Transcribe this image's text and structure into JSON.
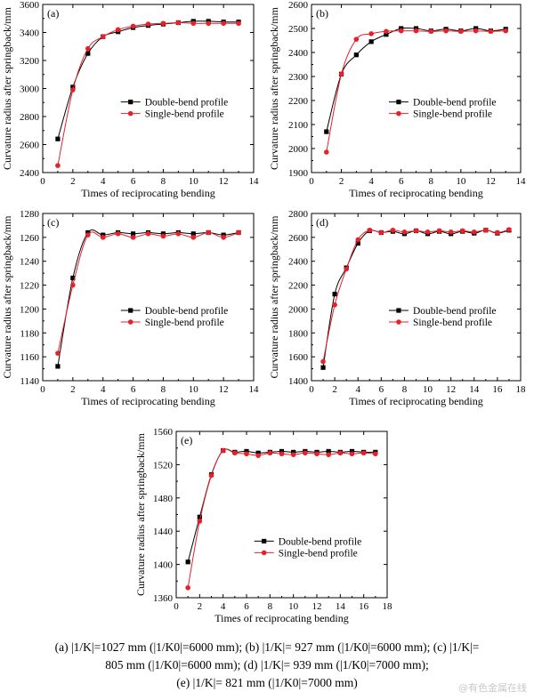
{
  "chart_data": [
    {
      "type": "line",
      "panel_label": "(a)",
      "xlabel": "Times of reciprocating bending",
      "ylabel": "Curvature radius after springback/mm",
      "xlim": [
        0,
        14
      ],
      "ylim": [
        2400,
        3600
      ],
      "xticks": [
        0,
        2,
        4,
        6,
        8,
        10,
        12,
        14
      ],
      "yticks": [
        2400,
        2600,
        2800,
        3000,
        3200,
        3400,
        3600
      ],
      "legend_position": "center-right",
      "series": [
        {
          "name": "Double-bend profile",
          "marker": "square",
          "color": "#000000",
          "x": [
            1,
            2,
            3,
            4,
            5,
            6,
            7,
            8,
            9,
            10,
            11,
            12,
            13
          ],
          "y": [
            2640,
            3010,
            3250,
            3370,
            3405,
            3435,
            3450,
            3460,
            3470,
            3480,
            3480,
            3475,
            3475
          ]
        },
        {
          "name": "Single-bend profile",
          "marker": "circle",
          "color": "#e8202a",
          "x": [
            1,
            2,
            3,
            4,
            5,
            6,
            7,
            8,
            9,
            10,
            11,
            12,
            13
          ],
          "y": [
            2450,
            2990,
            3285,
            3370,
            3420,
            3445,
            3460,
            3465,
            3470,
            3465,
            3465,
            3465,
            3465
          ]
        }
      ]
    },
    {
      "type": "line",
      "panel_label": "(b)",
      "xlabel": "Times of reciprocating bending",
      "ylabel": "Curvature radius after springback/mm",
      "xlim": [
        0,
        14
      ],
      "ylim": [
        1900,
        2600
      ],
      "xticks": [
        0,
        2,
        4,
        6,
        8,
        10,
        12,
        14
      ],
      "yticks": [
        1900,
        2000,
        2100,
        2200,
        2300,
        2400,
        2500,
        2600
      ],
      "legend_position": "center-right",
      "series": [
        {
          "name": "Double-bend profile",
          "marker": "square",
          "color": "#000000",
          "x": [
            1,
            2,
            3,
            4,
            5,
            6,
            7,
            8,
            9,
            10,
            11,
            12,
            13
          ],
          "y": [
            2070,
            2310,
            2390,
            2445,
            2475,
            2500,
            2500,
            2490,
            2497,
            2490,
            2500,
            2490,
            2497
          ]
        },
        {
          "name": "Single-bend profile",
          "marker": "circle",
          "color": "#e8202a",
          "x": [
            1,
            2,
            3,
            4,
            5,
            6,
            7,
            8,
            9,
            10,
            11,
            12,
            13
          ],
          "y": [
            1985,
            2310,
            2455,
            2478,
            2488,
            2490,
            2490,
            2488,
            2490,
            2488,
            2490,
            2488,
            2490
          ]
        }
      ]
    },
    {
      "type": "line",
      "panel_label": "(c)",
      "xlabel": "Times of reciprocating bending",
      "ylabel": "Curvature radius after springback/mm",
      "xlim": [
        0,
        14
      ],
      "ylim": [
        1140,
        1280
      ],
      "xticks": [
        0,
        2,
        4,
        6,
        8,
        10,
        12,
        14
      ],
      "yticks": [
        1140,
        1160,
        1180,
        1200,
        1220,
        1240,
        1260,
        1280
      ],
      "legend_position": "center-right",
      "series": [
        {
          "name": "Double-bend profile",
          "marker": "square",
          "color": "#000000",
          "x": [
            1,
            2,
            3,
            4,
            5,
            6,
            7,
            8,
            9,
            10,
            11,
            12,
            13
          ],
          "y": [
            1152,
            1226,
            1264,
            1262,
            1264,
            1263,
            1264,
            1263,
            1264,
            1263,
            1264,
            1262,
            1264
          ]
        },
        {
          "name": "Single-bend profile",
          "marker": "circle",
          "color": "#e8202a",
          "x": [
            1,
            2,
            3,
            4,
            5,
            6,
            7,
            8,
            9,
            10,
            11,
            12,
            13
          ],
          "y": [
            1163,
            1220,
            1262,
            1260,
            1263,
            1260,
            1263,
            1261,
            1263,
            1260,
            1264,
            1260,
            1264
          ]
        }
      ]
    },
    {
      "type": "line",
      "panel_label": "(d)",
      "xlabel": "Times of reciprocating bending",
      "ylabel": "Curvature radius after springback/mm",
      "xlim": [
        0,
        18
      ],
      "ylim": [
        1400,
        2800
      ],
      "xticks": [
        0,
        2,
        4,
        6,
        8,
        10,
        12,
        14,
        16,
        18
      ],
      "yticks": [
        1400,
        1600,
        1800,
        2000,
        2200,
        2400,
        2600,
        2800
      ],
      "legend_position": "center-right",
      "series": [
        {
          "name": "Double-bend profile",
          "marker": "square",
          "color": "#000000",
          "x": [
            1,
            2,
            3,
            4,
            5,
            6,
            7,
            8,
            9,
            10,
            11,
            12,
            13,
            14,
            15,
            16,
            17
          ],
          "y": [
            1510,
            2125,
            2345,
            2550,
            2655,
            2640,
            2650,
            2630,
            2655,
            2630,
            2650,
            2630,
            2650,
            2635,
            2660,
            2635,
            2660
          ]
        },
        {
          "name": "Single-bend profile",
          "marker": "circle",
          "color": "#e8202a",
          "x": [
            1,
            2,
            3,
            4,
            5,
            6,
            7,
            8,
            9,
            10,
            11,
            12,
            13,
            14,
            15,
            16,
            17
          ],
          "y": [
            1560,
            2035,
            2335,
            2580,
            2660,
            2640,
            2660,
            2645,
            2655,
            2645,
            2655,
            2645,
            2655,
            2645,
            2660,
            2640,
            2665
          ]
        }
      ]
    },
    {
      "type": "line",
      "panel_label": "(e)",
      "xlabel": "Times of reciprocating bending",
      "ylabel": "Curvature radius after springback/mm",
      "xlim": [
        0,
        18
      ],
      "ylim": [
        1360,
        1560
      ],
      "xticks": [
        0,
        2,
        4,
        6,
        8,
        10,
        12,
        14,
        16,
        18
      ],
      "yticks": [
        1360,
        1400,
        1440,
        1480,
        1520,
        1560
      ],
      "legend_position": "bottom-right",
      "series": [
        {
          "name": "Double-bend profile",
          "marker": "square",
          "color": "#000000",
          "x": [
            1,
            2,
            3,
            4,
            5,
            6,
            7,
            8,
            9,
            10,
            11,
            12,
            13,
            14,
            15,
            16,
            17
          ],
          "y": [
            1403,
            1457,
            1508,
            1537,
            1535,
            1536,
            1534,
            1535,
            1536,
            1535,
            1536,
            1535,
            1536,
            1535,
            1536,
            1535,
            1535
          ]
        },
        {
          "name": "Single-bend profile",
          "marker": "circle",
          "color": "#e8202a",
          "x": [
            1,
            2,
            3,
            4,
            5,
            6,
            7,
            8,
            9,
            10,
            11,
            12,
            13,
            14,
            15,
            16,
            17
          ],
          "y": [
            1372,
            1452,
            1507,
            1537,
            1534,
            1533,
            1531,
            1534,
            1533,
            1532,
            1534,
            1533,
            1532,
            1534,
            1533,
            1534,
            1533
          ]
        }
      ]
    }
  ],
  "caption": {
    "line1": "(a)  |1/K|=1027 mm (|1/K0|=6000 mm); (b) |1/K|= 927 mm (|1/K0|=6000 mm); (c) |1/K|=",
    "line2": "805 mm (|1/K0|=6000 mm); (d) |1/K|= 939 mm (|1/K0|=7000 mm);",
    "line3": "(e) |1/K|= 821 mm (|1/K0|=7000 mm)"
  },
  "watermark": "@有色金属在线"
}
